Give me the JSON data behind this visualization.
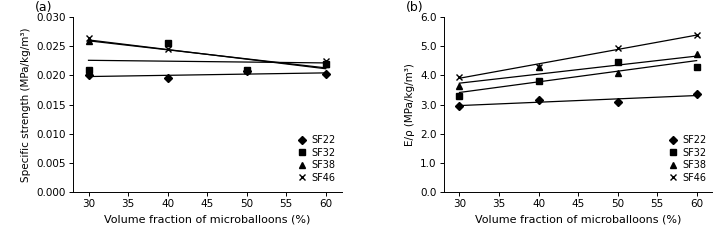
{
  "x": [
    30,
    40,
    50,
    60
  ],
  "panel_a": {
    "title": "(a)",
    "ylabel": "Specific strength (MPa/kg/m³)",
    "xlabel": "Volume fraction of microballoons (%)",
    "ylim": [
      0.0,
      0.03
    ],
    "yticks": [
      0.0,
      0.005,
      0.01,
      0.015,
      0.02,
      0.025,
      0.03
    ],
    "xlim": [
      28,
      62
    ],
    "xticks": [
      30,
      35,
      40,
      45,
      50,
      55,
      60
    ],
    "series": {
      "SF22": [
        0.02,
        0.0195,
        0.0207,
        0.0203
      ],
      "SF32": [
        0.021,
        0.0255,
        0.021,
        0.022
      ],
      "SF38": [
        0.026,
        0.0255,
        0.021,
        0.022
      ],
      "SF46": [
        0.0265,
        0.0245,
        0.021,
        0.0225
      ]
    }
  },
  "panel_b": {
    "title": "(b)",
    "ylabel": "E/ρ (MPa/kg/m³)",
    "xlabel": "Volume fraction of microballoons (%)",
    "ylim": [
      0.0,
      6.0
    ],
    "yticks": [
      0.0,
      1.0,
      2.0,
      3.0,
      4.0,
      5.0,
      6.0
    ],
    "xlim": [
      28,
      62
    ],
    "xticks": [
      30,
      35,
      40,
      45,
      50,
      55,
      60
    ],
    "series": {
      "SF22": [
        2.95,
        3.15,
        3.1,
        3.35
      ],
      "SF32": [
        3.3,
        3.8,
        4.45,
        4.3
      ],
      "SF38": [
        3.65,
        4.3,
        4.1,
        4.75
      ],
      "SF46": [
        3.95,
        4.3,
        4.95,
        5.38
      ]
    }
  },
  "markers": {
    "SF22": "D",
    "SF32": "s",
    "SF38": "^",
    "SF46": "x"
  },
  "line_color": "#000000",
  "marker_color": "#000000",
  "legend_order": [
    "SF22",
    "SF32",
    "SF38",
    "SF46"
  ]
}
